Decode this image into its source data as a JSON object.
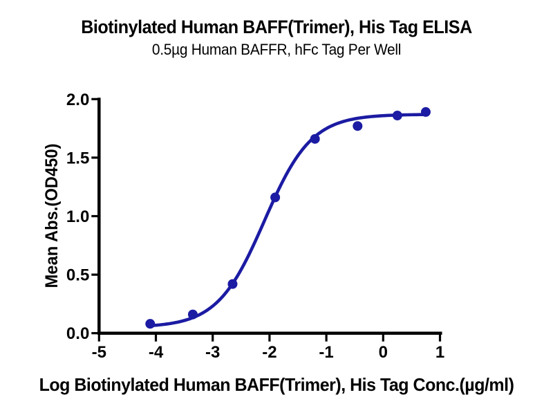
{
  "header": {
    "title": "Biotinylated Human BAFF(Trimer), His Tag ELISA",
    "subtitle": "0.5µg Human BAFFR, hFc Tag Per Well"
  },
  "chart_data": {
    "type": "scatter",
    "title": "Biotinylated Human BAFF(Trimer), His Tag ELISA",
    "subtitle": "0.5µg Human BAFFR, hFc Tag Per Well",
    "xlabel": "Log Biotinylated Human BAFF(Trimer), His Tag Conc.(µg/ml)",
    "ylabel": "Mean Abs.(OD450)",
    "xlim": [
      -5,
      1
    ],
    "ylim": [
      0,
      2
    ],
    "x_ticks": [
      -5,
      -4,
      -3,
      -2,
      -1,
      0,
      1
    ],
    "y_ticks": [
      0,
      0.5,
      1,
      1.5,
      2
    ],
    "x_tick_labels": [
      "-5",
      "-4",
      "-3",
      "-2",
      "-1",
      "0",
      "1"
    ],
    "y_tick_labels": [
      "0.0",
      "0.5",
      "1.0",
      "1.5",
      "2.0"
    ],
    "grid": false,
    "legend": "none",
    "series": [
      {
        "name": "Biotinylated Human BAFF(Trimer), His Tag",
        "marker": "circle",
        "x": [
          -4.1,
          -3.35,
          -2.65,
          -1.9,
          -1.2,
          -0.45,
          0.25,
          0.75
        ],
        "y": [
          0.08,
          0.16,
          0.42,
          1.16,
          1.66,
          1.77,
          1.86,
          1.89
        ]
      }
    ],
    "fit_curve": {
      "model": "4PL",
      "bottom": 0.05,
      "top": 1.87,
      "log_ec50": -2.09,
      "hill": 1.05
    }
  },
  "style": {
    "curve_color": "#1b1ba3",
    "marker_color": "#1b1ba3",
    "axis_color": "#000000",
    "text_color": "#000000",
    "background": "#ffffff"
  }
}
